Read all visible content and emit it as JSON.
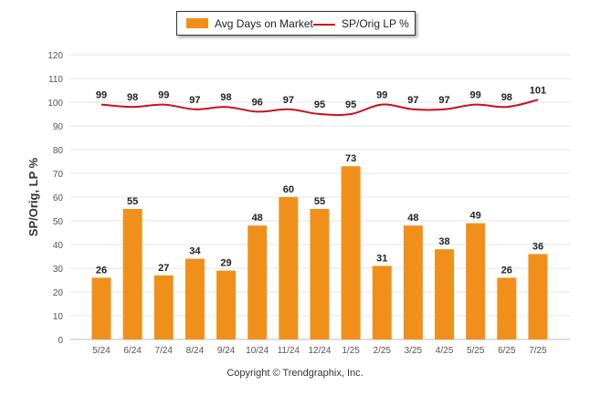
{
  "legend": {
    "bar_label": "Avg Days on Market",
    "line_label": "SP/Orig LP %"
  },
  "copyright": "Copyright © Trendgraphix, Inc.",
  "colors": {
    "bar": "#f0901a",
    "line": "#c8101e",
    "grid": "#e6e6e6",
    "axis_text": "#555555"
  },
  "chart_data": {
    "type": "bar",
    "categories": [
      "5/24",
      "6/24",
      "7/24",
      "8/24",
      "9/24",
      "10/24",
      "11/24",
      "12/24",
      "1/25",
      "2/25",
      "3/25",
      "4/25",
      "5/25",
      "6/25",
      "7/25"
    ],
    "series": [
      {
        "name": "Avg Days on Market",
        "type": "bar",
        "values": [
          26,
          55,
          27,
          34,
          29,
          48,
          60,
          55,
          73,
          31,
          48,
          38,
          49,
          26,
          36
        ]
      },
      {
        "name": "SP/Orig LP %",
        "type": "line",
        "values": [
          99,
          98,
          99,
          97,
          98,
          96,
          97,
          95,
          95,
          99,
          97,
          97,
          99,
          98,
          101
        ]
      }
    ],
    "ylabel": "SP/Orig, LP %",
    "ylim": [
      0,
      120
    ],
    "yticks": [
      0,
      10,
      20,
      30,
      40,
      50,
      60,
      70,
      80,
      90,
      100,
      110,
      120
    ],
    "grid": true,
    "legend_position": "top-center"
  }
}
